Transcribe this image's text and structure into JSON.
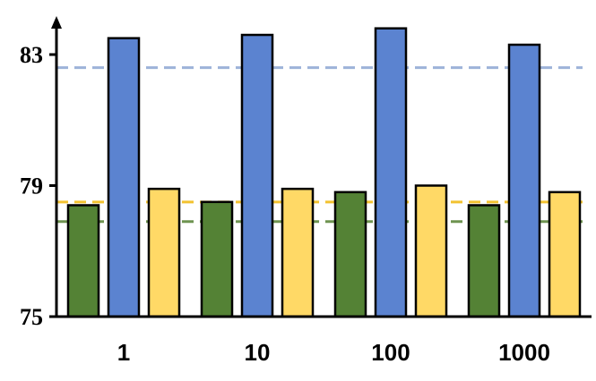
{
  "chart_data": {
    "type": "bar",
    "categories": [
      "1",
      "10",
      "100",
      "1000"
    ],
    "series": [
      {
        "color": "#548235",
        "values": [
          78.4,
          78.5,
          78.8,
          78.4
        ]
      },
      {
        "color": "#5B83D0",
        "values": [
          83.5,
          83.6,
          83.8,
          83.3
        ]
      },
      {
        "color": "#FFD966",
        "values": [
          78.9,
          78.9,
          79.0,
          78.8
        ]
      }
    ],
    "reference_lines": [
      {
        "color": "#9DB3D9",
        "y": 82.6
      },
      {
        "color": "#F2C230",
        "y": 78.5
      },
      {
        "color": "#6E9450",
        "y": 77.9
      }
    ],
    "ylim": [
      75,
      84.5
    ],
    "yticks": [
      75,
      79,
      83
    ],
    "ytick_labels": [
      "75",
      "79",
      "83"
    ],
    "xlabel": "",
    "ylabel": "",
    "title": "",
    "grid": false,
    "legend": "none"
  }
}
